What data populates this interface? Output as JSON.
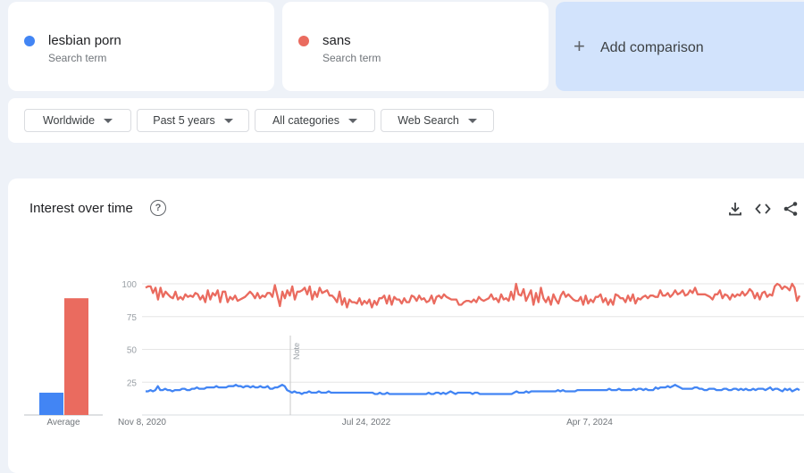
{
  "terms": [
    {
      "name": "lesbian porn",
      "subtitle": "Search term",
      "color": "#4285f4"
    },
    {
      "name": "sans",
      "subtitle": "Search term",
      "color": "#ea6b5f"
    }
  ],
  "add_comparison": {
    "label": "Add comparison",
    "icon": "plus-icon"
  },
  "filters": {
    "region": "Worldwide",
    "time": "Past 5 years",
    "category": "All categories",
    "search_type": "Web Search"
  },
  "chart_section": {
    "title": "Interest over time",
    "icons": [
      "help-icon",
      "download-icon",
      "embed-icon",
      "share-icon"
    ]
  },
  "chart_data": {
    "type": "line",
    "ylim": [
      0,
      100
    ],
    "y_ticks": [
      "25",
      "50",
      "75",
      "100"
    ],
    "x_tick_labels": [
      "Nov 8, 2020",
      "Jul 24, 2022",
      "Apr 7, 2024"
    ],
    "note_label": "Note",
    "average": {
      "label": "Average",
      "values": [
        17,
        89
      ]
    },
    "series": [
      {
        "color": "#4285f4",
        "values": [
          18,
          18,
          19,
          18,
          19,
          22,
          19,
          19,
          20,
          19,
          19,
          18,
          19,
          19,
          19,
          20,
          20,
          19,
          19,
          20,
          20,
          21,
          20,
          20,
          20,
          21,
          21,
          21,
          21,
          22,
          21,
          21,
          21,
          21,
          22,
          22,
          22,
          23,
          22,
          22,
          21,
          22,
          22,
          21,
          22,
          21,
          21,
          22,
          21,
          21,
          22,
          20,
          20,
          21,
          21,
          22,
          23,
          22,
          19,
          18,
          17,
          18,
          17,
          17,
          16,
          17,
          17,
          18,
          17,
          17,
          17,
          18,
          17,
          17,
          17,
          18,
          17,
          17,
          17,
          17,
          17,
          17,
          17,
          17,
          17,
          17,
          17,
          17,
          17,
          17,
          17,
          17,
          17,
          17,
          16,
          16,
          17,
          16,
          16,
          17,
          16,
          16,
          16,
          16,
          16,
          16,
          16,
          16,
          16,
          16,
          16,
          16,
          16,
          16,
          16,
          16,
          17,
          16,
          16,
          17,
          17,
          16,
          17,
          16,
          17,
          18,
          17,
          16,
          17,
          17,
          17,
          17,
          17,
          17,
          16,
          17,
          17,
          16,
          16,
          16,
          16,
          16,
          16,
          16,
          16,
          16,
          16,
          16,
          16,
          16,
          16,
          17,
          18,
          17,
          17,
          17,
          18,
          17,
          18,
          18,
          18,
          18,
          18,
          18,
          18,
          18,
          18,
          18,
          18,
          19,
          18,
          19,
          18,
          18,
          18,
          18,
          18,
          19,
          19,
          19,
          19,
          19,
          19,
          19,
          19,
          19,
          19,
          19,
          19,
          19,
          20,
          19,
          19,
          19,
          20,
          19,
          19,
          19,
          19,
          19,
          20,
          19,
          20,
          20,
          19,
          20,
          19,
          19,
          19,
          21,
          20,
          21,
          21,
          21,
          22,
          21,
          22,
          23,
          22,
          21,
          20,
          20,
          20,
          20,
          20,
          21,
          21,
          20,
          20,
          19,
          19,
          20,
          20,
          20,
          19,
          19,
          19,
          20,
          20,
          19,
          19,
          20,
          20,
          19,
          20,
          19,
          20,
          19,
          19,
          20,
          19,
          20,
          20,
          20,
          19,
          20,
          21,
          19,
          20,
          20,
          19,
          18,
          20,
          19,
          20,
          18,
          19,
          20,
          19
        ]
      },
      {
        "color": "#ea6b5f",
        "values": [
          97,
          98,
          98,
          93,
          97,
          88,
          97,
          90,
          94,
          92,
          90,
          89,
          94,
          88,
          90,
          88,
          92,
          90,
          91,
          90,
          93,
          92,
          88,
          91,
          86,
          95,
          88,
          93,
          91,
          95,
          86,
          94,
          94,
          86,
          90,
          88,
          91,
          87,
          88,
          89,
          90,
          92,
          94,
          92,
          89,
          93,
          89,
          91,
          90,
          93,
          93,
          90,
          99,
          91,
          83,
          94,
          89,
          95,
          91,
          98,
          88,
          94,
          94,
          95,
          97,
          92,
          98,
          88,
          94,
          90,
          97,
          93,
          94,
          95,
          91,
          91,
          89,
          86,
          94,
          84,
          89,
          82,
          88,
          86,
          86,
          85,
          89,
          84,
          87,
          85,
          88,
          82,
          87,
          84,
          89,
          89,
          91,
          85,
          91,
          84,
          90,
          88,
          88,
          85,
          89,
          86,
          86,
          91,
          90,
          87,
          91,
          88,
          89,
          86,
          87,
          91,
          85,
          90,
          91,
          89,
          92,
          90,
          89,
          88,
          88,
          88,
          84,
          84,
          86,
          87,
          87,
          86,
          88,
          86,
          90,
          88,
          87,
          88,
          89,
          92,
          88,
          89,
          86,
          92,
          88,
          89,
          87,
          94,
          88,
          100,
          92,
          91,
          96,
          87,
          91,
          95,
          84,
          93,
          86,
          97,
          89,
          86,
          90,
          84,
          92,
          88,
          85,
          91,
          94,
          90,
          92,
          90,
          88,
          87,
          87,
          90,
          84,
          91,
          85,
          88,
          86,
          90,
          90,
          92,
          86,
          89,
          84,
          88,
          84,
          92,
          91,
          89,
          89,
          86,
          91,
          87,
          92,
          85,
          89,
          88,
          90,
          91,
          89,
          91,
          91,
          90,
          90,
          95,
          91,
          91,
          93,
          90,
          92,
          95,
          92,
          93,
          95,
          91,
          92,
          95,
          93,
          97,
          92,
          92,
          92,
          92,
          91,
          90,
          88,
          92,
          92,
          95,
          89,
          92,
          91,
          88,
          92,
          90,
          92,
          91,
          94,
          91,
          93,
          96,
          94,
          89,
          93,
          88,
          93,
          94,
          90,
          92,
          91,
          98,
          100,
          99,
          96,
          98,
          97,
          95,
          100,
          97,
          87,
          91
        ]
      }
    ]
  }
}
